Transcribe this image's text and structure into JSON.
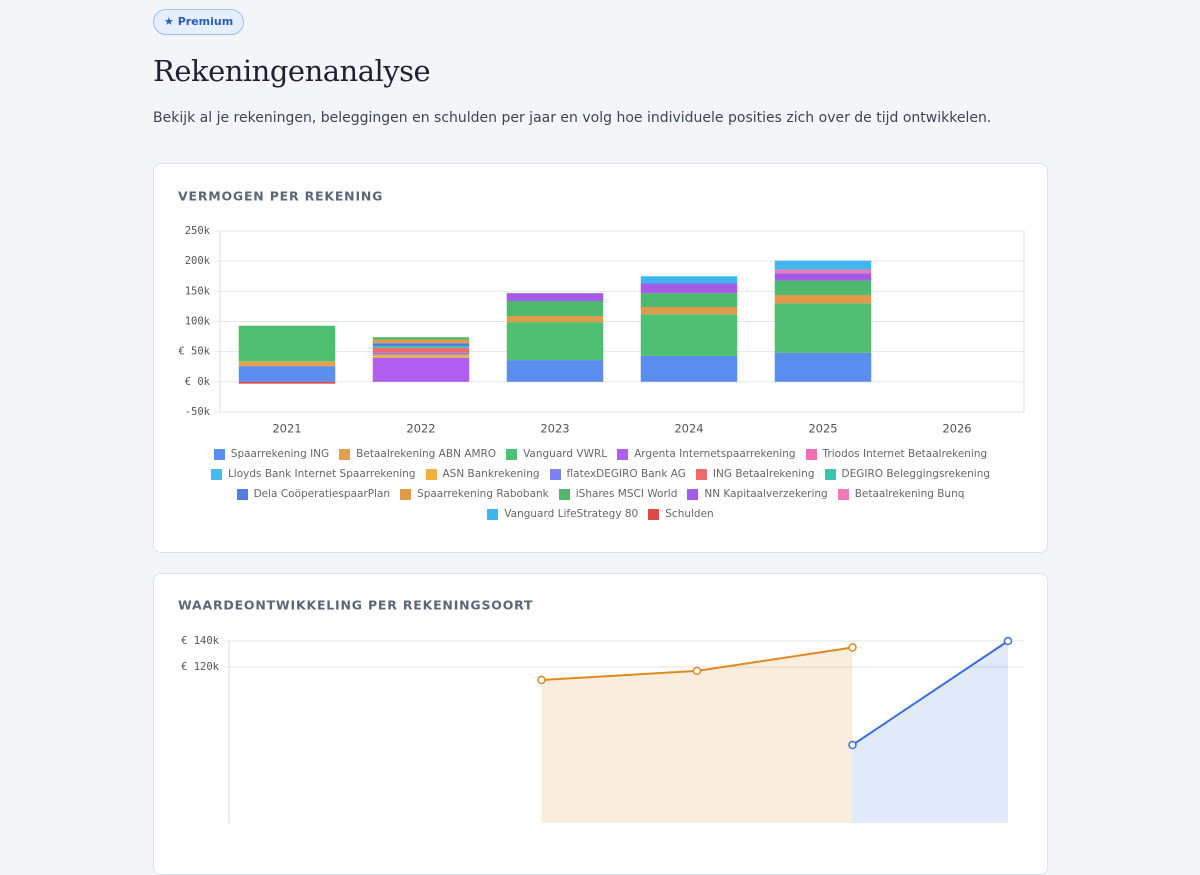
{
  "badge": "★ Premium",
  "title": "Rekeningenanalyse",
  "description": "Bekijk al je rekeningen, beleggingen en schulden per jaar en volg hoe individuele posities zich over de tijd ontwikkelen.",
  "chart_data": [
    {
      "type": "stacked-bar",
      "title": "VERMOGEN PER REKENING",
      "categories": [
        "2021",
        "2022",
        "2023",
        "2024",
        "2025",
        "2026"
      ],
      "ylim": [
        -50000,
        250000
      ],
      "yticks": [
        {
          "value": -50000,
          "label": "-50k"
        },
        {
          "value": 0,
          "label": "€ 0k"
        },
        {
          "value": 50000,
          "label": "€ 50k"
        },
        {
          "value": 100000,
          "label": "100k"
        },
        {
          "value": 150000,
          "label": "150k"
        },
        {
          "value": 200000,
          "label": "200k"
        },
        {
          "value": 250000,
          "label": "250k"
        }
      ],
      "grid": true,
      "series": [
        {
          "name": "Spaarrekening ING",
          "color": "#5b8def",
          "values": [
            26000,
            0,
            36000,
            43000,
            48000,
            0
          ]
        },
        {
          "name": "Betaalrekening ABN AMRO",
          "color": "#e3a04c",
          "values": [
            8000,
            0,
            0,
            0,
            0,
            0
          ]
        },
        {
          "name": "Vanguard VWRL",
          "color": "#4fbf72",
          "values": [
            59000,
            0,
            63000,
            69000,
            82000,
            0
          ]
        },
        {
          "name": "Argenta Internetspaarrekening",
          "color": "#b05ef0",
          "values": [
            0,
            40000,
            0,
            0,
            0,
            0
          ]
        },
        {
          "name": "Triodos Internet Betaalrekening",
          "color": "#f06fb0",
          "values": [
            0,
            0,
            0,
            0,
            0,
            0
          ]
        },
        {
          "name": "Lloyds Bank Internet Spaarrekening",
          "color": "#49b8ee",
          "values": [
            0,
            0,
            0,
            0,
            0,
            0
          ]
        },
        {
          "name": "ASN Bankrekening",
          "color": "#f0b040",
          "values": [
            0,
            5000,
            0,
            0,
            0,
            0
          ]
        },
        {
          "name": "flatexDEGIRO Bank AG",
          "color": "#7c83f0",
          "values": [
            0,
            3000,
            0,
            0,
            0,
            0
          ]
        },
        {
          "name": "ING Betaalrekening",
          "color": "#ef6b6b",
          "values": [
            0,
            8000,
            0,
            0,
            0,
            0
          ]
        },
        {
          "name": "DEGIRO Beleggingsrekening",
          "color": "#3fc2ae",
          "values": [
            0,
            3000,
            0,
            0,
            0,
            0
          ]
        },
        {
          "name": "Dela CoöperatiespaarPlan",
          "color": "#4f7fe6",
          "values": [
            0,
            5000,
            0,
            0,
            0,
            0
          ]
        },
        {
          "name": "Spaarrekening Rabobank",
          "color": "#e09a4a",
          "values": [
            0,
            6000,
            10000,
            12000,
            14000,
            0
          ]
        },
        {
          "name": "iShares MSCI World",
          "color": "#4db86e",
          "values": [
            0,
            4000,
            25000,
            23000,
            24000,
            0
          ]
        },
        {
          "name": "NN Kapitaalverzekering",
          "color": "#a35be8",
          "values": [
            0,
            0,
            13000,
            16000,
            12000,
            0
          ]
        },
        {
          "name": "Betaalrekening Bunq",
          "color": "#f07ab8",
          "values": [
            0,
            0,
            0,
            0,
            6000,
            0
          ]
        },
        {
          "name": "Vanguard LifeStrategy 80",
          "color": "#41b5ee",
          "values": [
            0,
            0,
            0,
            12000,
            15000,
            0
          ]
        },
        {
          "name": "Schulden",
          "color": "#e04848",
          "values": [
            -3000,
            0,
            0,
            0,
            0,
            0
          ]
        }
      ]
    },
    {
      "type": "line",
      "title": "WAARDEONTWIKKELING PER REKENINGSOORT",
      "categories": [
        null,
        null,
        null,
        null,
        null,
        null
      ],
      "ylim": [
        0,
        140000
      ],
      "yticks": [
        {
          "value": 120000,
          "label": "€ 120k"
        },
        {
          "value": 140000,
          "label": "€ 140k"
        }
      ],
      "grid": true,
      "series": [
        {
          "color": "#e0891e",
          "values": [
            null,
            null,
            110000,
            117000,
            135000,
            null
          ]
        },
        {
          "color": "#3b6fe0",
          "values": [
            null,
            null,
            null,
            null,
            60000,
            140000
          ]
        }
      ]
    }
  ]
}
